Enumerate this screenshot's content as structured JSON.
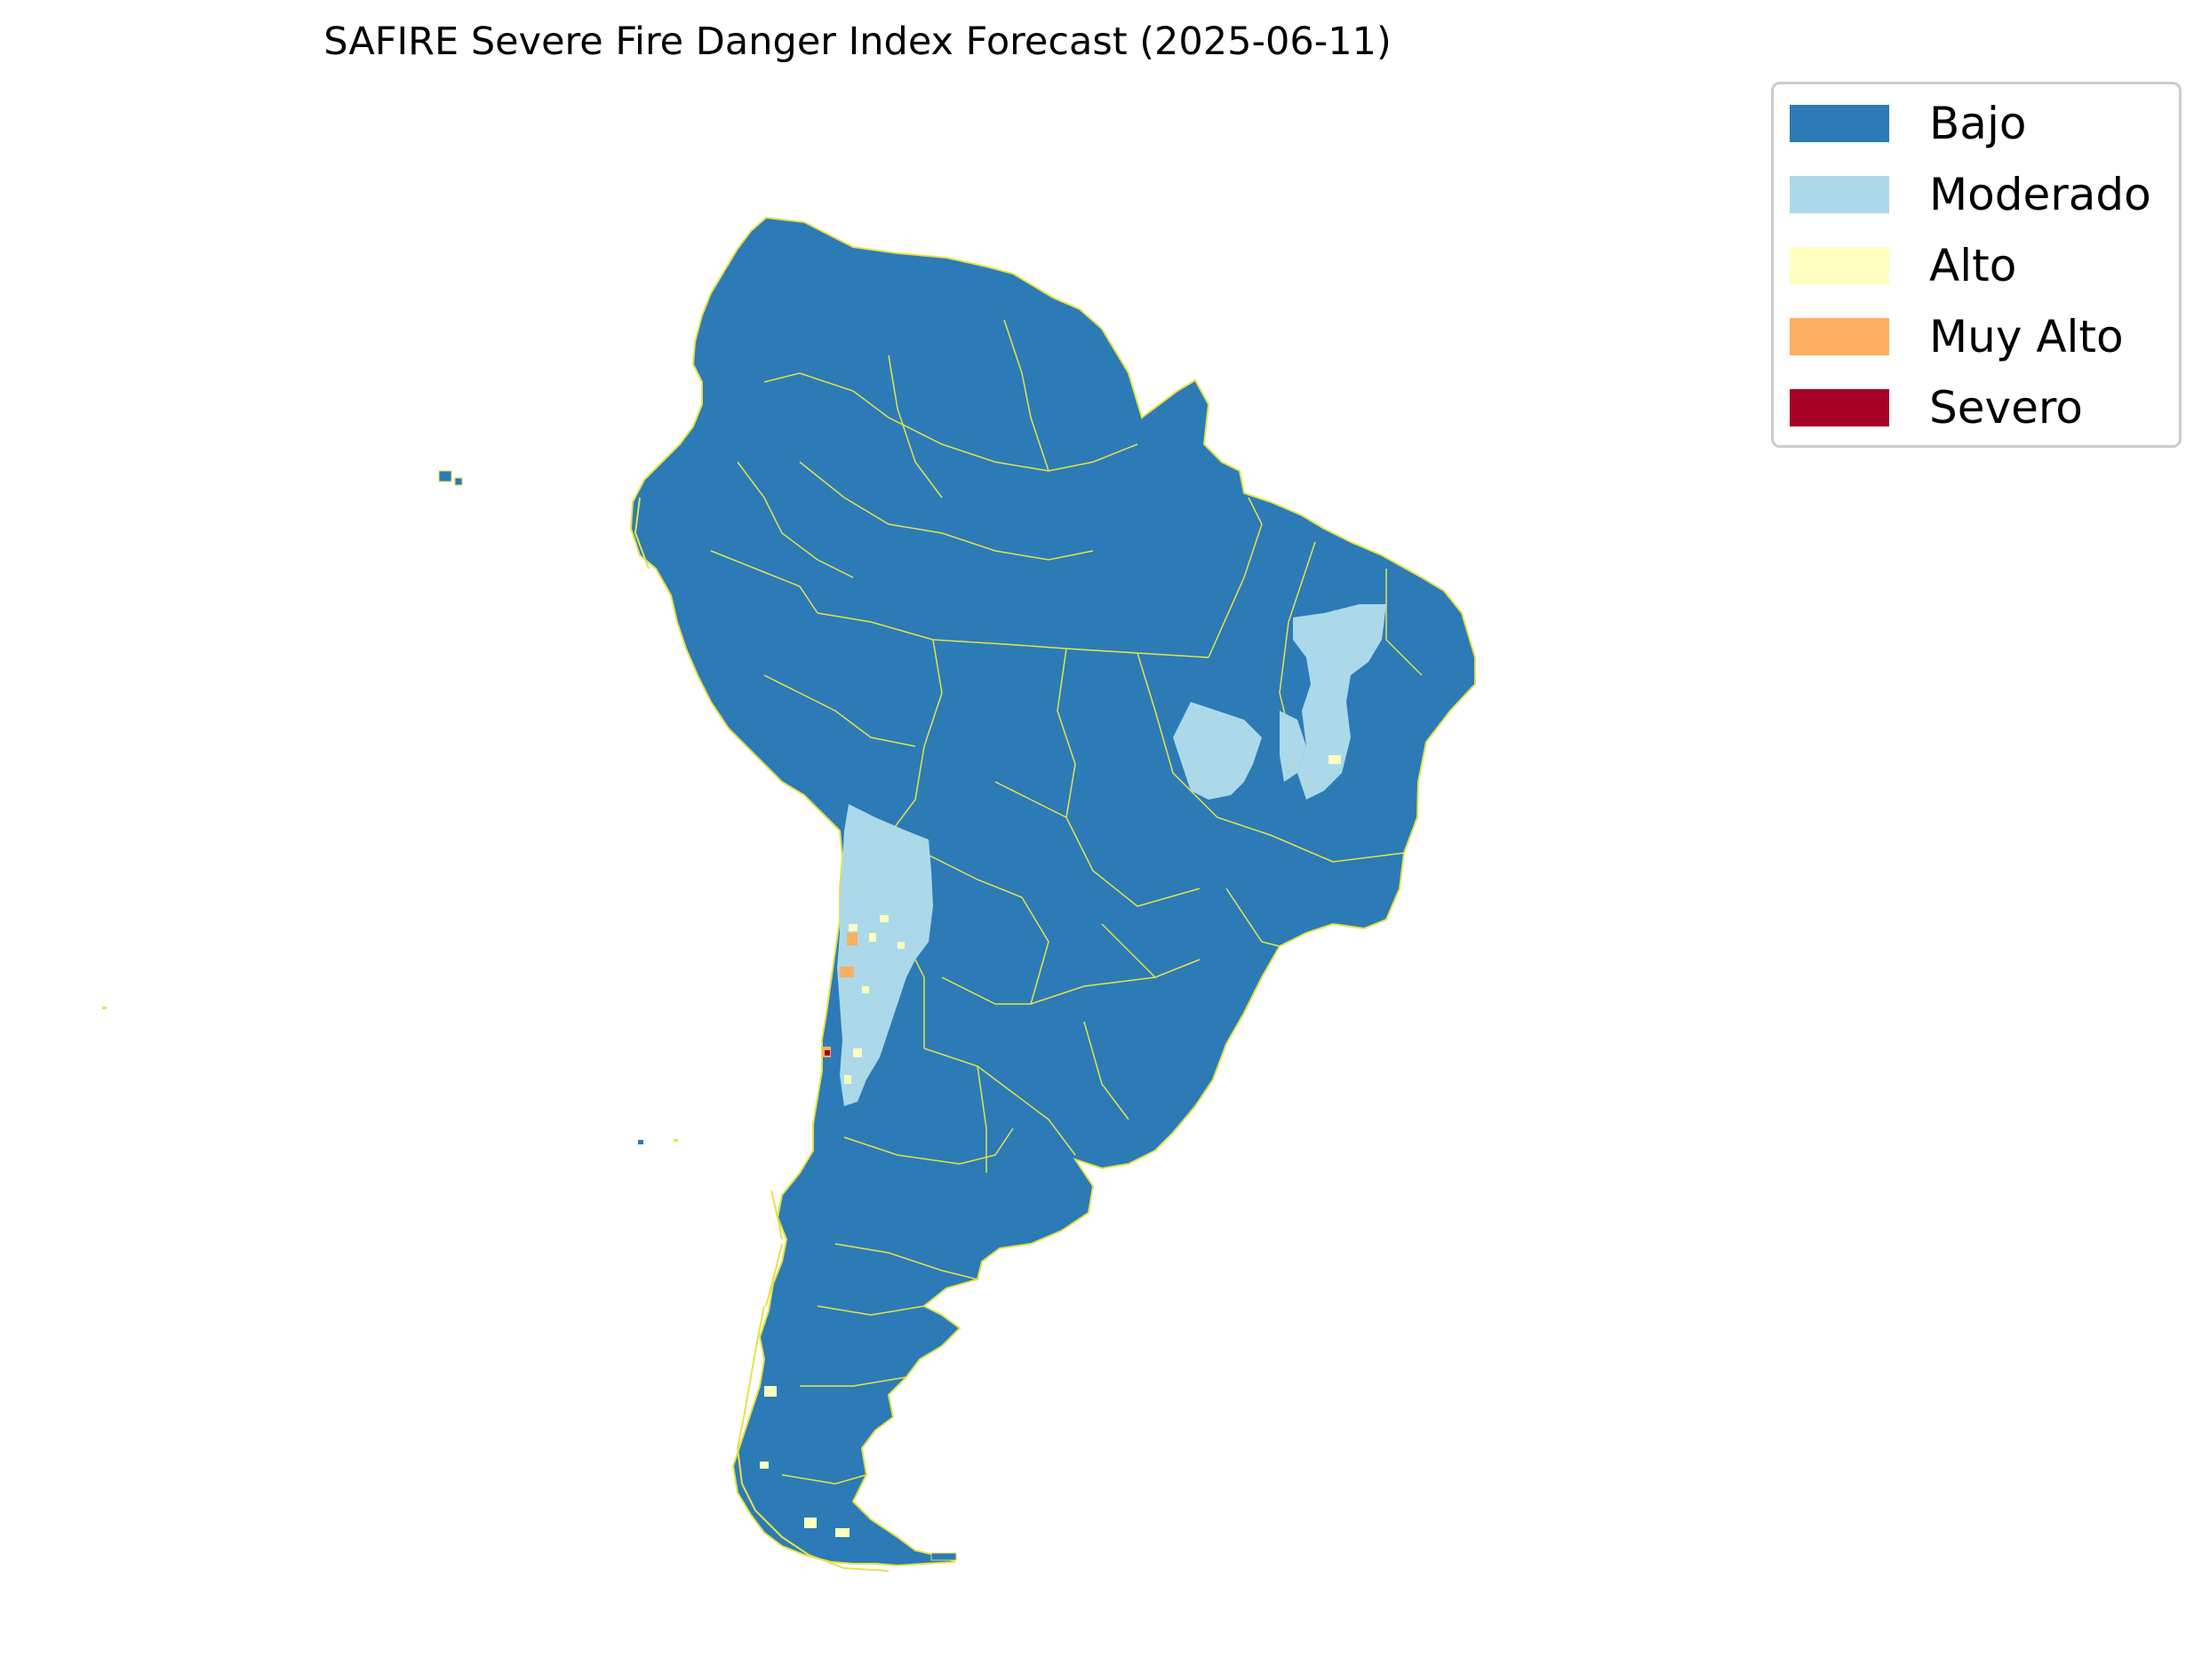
{
  "title": "SAFIRE Severe Fire Danger Index Forecast (2025-06-11)",
  "legend": {
    "items": [
      {
        "label": "Bajo",
        "color": "#2c7bb6"
      },
      {
        "label": "Moderado",
        "color": "#abd9e9"
      },
      {
        "label": "Alto",
        "color": "#ffffbf"
      },
      {
        "label": "Muy Alto",
        "color": "#fdae61"
      },
      {
        "label": "Severo",
        "color": "#a50026"
      }
    ]
  },
  "colors": {
    "land_base": "#2c7bb6",
    "borders": "#e6e24a",
    "moderado": "#abd9e9",
    "alto": "#ffffbf",
    "muy_alto": "#fdae61",
    "severo": "#a50026"
  }
}
